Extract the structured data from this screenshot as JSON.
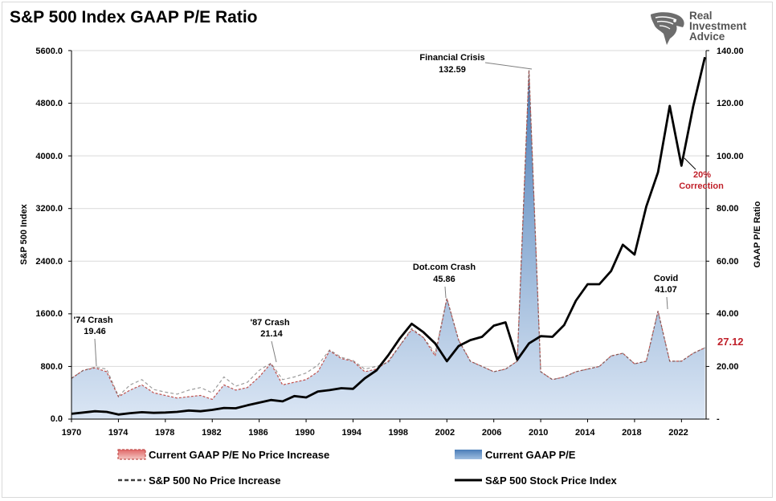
{
  "header": {
    "title": "S&P 500 Index GAAP P/E Ratio"
  },
  "logo": {
    "lines": [
      "Real",
      "Investment",
      "Advice"
    ],
    "icon": "eagle-head-icon",
    "color": "#555555"
  },
  "colors": {
    "pe_fill_top": "#4a7db8",
    "pe_fill_bottom": "#dbe6f4",
    "pe_dash": "#c0504d",
    "index_line": "#000000",
    "grid": "#d9d9d9",
    "accent_red": "#c0202a"
  },
  "chart_data": {
    "type": "line",
    "title": "S&P 500 Index GAAP P/E Ratio",
    "x_ticks": [
      "1970",
      "1974",
      "1978",
      "1982",
      "1986",
      "1990",
      "1994",
      "1998",
      "2002",
      "2006",
      "2010",
      "2014",
      "2018",
      "2022"
    ],
    "xlim": [
      1970,
      2024.1
    ],
    "y_left": {
      "label": "S&P 500 Index",
      "ticks": [
        "0.0",
        "800.0",
        "1600.0",
        "2400.0",
        "3200.0",
        "4000.0",
        "4800.0",
        "5600.0"
      ],
      "ylim": [
        0,
        5600
      ]
    },
    "y_right": {
      "label": "GAAP P/E Ratio",
      "ticks": [
        "-",
        "20.00",
        "40.00",
        "60.00",
        "80.00",
        "100.00",
        "120.00",
        "140.00"
      ],
      "ylim": [
        0,
        140
      ]
    },
    "grid": true,
    "legend_position": "bottom",
    "series": [
      {
        "name": "Current GAAP P/E No Price Increase",
        "axis": "right",
        "x": [
          1970,
          1971,
          1972,
          1973,
          1974,
          1975,
          1976,
          1977,
          1978,
          1979,
          1980,
          1981,
          1982,
          1983,
          1984,
          1985,
          1986,
          1987,
          1988,
          1989,
          1990,
          1991,
          1992,
          1993,
          1994,
          1995,
          1996,
          1997,
          1998,
          1999,
          2000,
          2001,
          2002,
          2003,
          2004,
          2005,
          2006,
          2007,
          2008,
          2009,
          2010,
          2011,
          2012,
          2013,
          2014,
          2015,
          2016,
          2017,
          2018,
          2019,
          2020,
          2021,
          2022,
          2023,
          2024
        ],
        "values": [
          15.5,
          18.5,
          19.46,
          18,
          8.5,
          11,
          13,
          10,
          9,
          8,
          8.5,
          9,
          7.5,
          13,
          11,
          12,
          16,
          21.14,
          13,
          14,
          15,
          18,
          26,
          23,
          22,
          18,
          19,
          22,
          28,
          34,
          31,
          24,
          45.86,
          30,
          22,
          20,
          18,
          19,
          22,
          132.59,
          18,
          15,
          16,
          18,
          19,
          20,
          24,
          25,
          21,
          22,
          41.07,
          22,
          22,
          25,
          27.12
        ]
      },
      {
        "name": "Current GAAP P/E",
        "axis": "right",
        "x": [
          1970,
          1971,
          1972,
          1973,
          1974,
          1975,
          1976,
          1977,
          1978,
          1979,
          1980,
          1981,
          1982,
          1983,
          1984,
          1985,
          1986,
          1987,
          1988,
          1989,
          1990,
          1991,
          1992,
          1993,
          1994,
          1995,
          1996,
          1997,
          1998,
          1999,
          2000,
          2001,
          2002,
          2003,
          2004,
          2005,
          2006,
          2007,
          2008,
          2009,
          2010,
          2011,
          2012,
          2013,
          2014,
          2015,
          2016,
          2017,
          2018,
          2019,
          2020,
          2021,
          2022,
          2023,
          2024
        ],
        "values": [
          15.5,
          18.5,
          19.46,
          18,
          8.5,
          11,
          13,
          10,
          9,
          8,
          8.5,
          9,
          7.5,
          13,
          11,
          12,
          16,
          21.14,
          13,
          14,
          15,
          18,
          26,
          23,
          22,
          18,
          19,
          22,
          28,
          34,
          31,
          24,
          45.86,
          30,
          22,
          20,
          18,
          19,
          22,
          132.59,
          18,
          15,
          16,
          18,
          19,
          20,
          24,
          25,
          21,
          22,
          41.07,
          22,
          22,
          25,
          27.12
        ]
      },
      {
        "name": "S&P 500 No Price Increase",
        "axis": "left",
        "x": [
          1970,
          1971,
          1972,
          1973,
          1974,
          1975,
          1976,
          1977,
          1978,
          1979,
          1980,
          1981,
          1982,
          1983,
          1984,
          1985,
          1986,
          1987,
          1988,
          1989,
          1990,
          1991,
          1992,
          1993,
          1994,
          1995,
          1996,
          1997,
          1998,
          1999,
          2000,
          2001,
          2002,
          2003,
          2004,
          2005,
          2006,
          2007,
          2008,
          2009,
          2010,
          2011,
          2012,
          2013,
          2014,
          2015,
          2016,
          2017,
          2018,
          2019,
          2020,
          2021,
          2022,
          2023,
          2024
        ],
        "values": [
          620,
          740,
          790,
          760,
          350,
          520,
          600,
          450,
          410,
          380,
          440,
          480,
          400,
          640,
          500,
          560,
          740,
          850,
          600,
          640,
          700,
          820,
          1050,
          940,
          890,
          760,
          800,
          860,
          1120,
          1380,
          1240,
          1000,
          1830,
          1200,
          880,
          800,
          720,
          760,
          880,
          5300,
          720,
          600,
          640,
          720,
          760,
          800,
          960,
          1000,
          840,
          880,
          1640,
          880,
          880,
          1000,
          1085
        ]
      },
      {
        "name": "S&P 500 Stock Price Index",
        "axis": "left",
        "x": [
          1970,
          1971,
          1972,
          1973,
          1974,
          1975,
          1976,
          1977,
          1978,
          1979,
          1980,
          1981,
          1982,
          1983,
          1984,
          1985,
          1986,
          1987,
          1988,
          1989,
          1990,
          1991,
          1992,
          1993,
          1994,
          1995,
          1996,
          1997,
          1998,
          1999,
          2000,
          2001,
          2002,
          2003,
          2004,
          2005,
          2006,
          2007,
          2008,
          2009,
          2010,
          2011,
          2012,
          2013,
          2014,
          2015,
          2016,
          2017,
          2018,
          2019,
          2020,
          2021,
          2022,
          2023,
          2024
        ],
        "values": [
          80,
          100,
          120,
          110,
          70,
          90,
          105,
          95,
          100,
          110,
          130,
          120,
          140,
          170,
          165,
          210,
          250,
          290,
          270,
          350,
          330,
          420,
          440,
          470,
          460,
          620,
          740,
          970,
          1230,
          1450,
          1320,
          1150,
          880,
          1110,
          1200,
          1250,
          1420,
          1470,
          900,
          1150,
          1260,
          1250,
          1430,
          1800,
          2050,
          2050,
          2250,
          2650,
          2500,
          3230,
          3750,
          4760,
          3850,
          4750,
          5500
        ]
      }
    ],
    "annotations": [
      {
        "label": "'74 Crash",
        "value": "19.46"
      },
      {
        "label": "'87 Crash",
        "value": "21.14"
      },
      {
        "label": "Dot.com Crash",
        "value": "45.86"
      },
      {
        "label": "Financial Crisis",
        "value": "132.59"
      },
      {
        "label": "Covid",
        "value": "41.07"
      },
      {
        "label": "20%",
        "value": "Correction"
      },
      {
        "label": "",
        "value": "27.12"
      }
    ]
  }
}
